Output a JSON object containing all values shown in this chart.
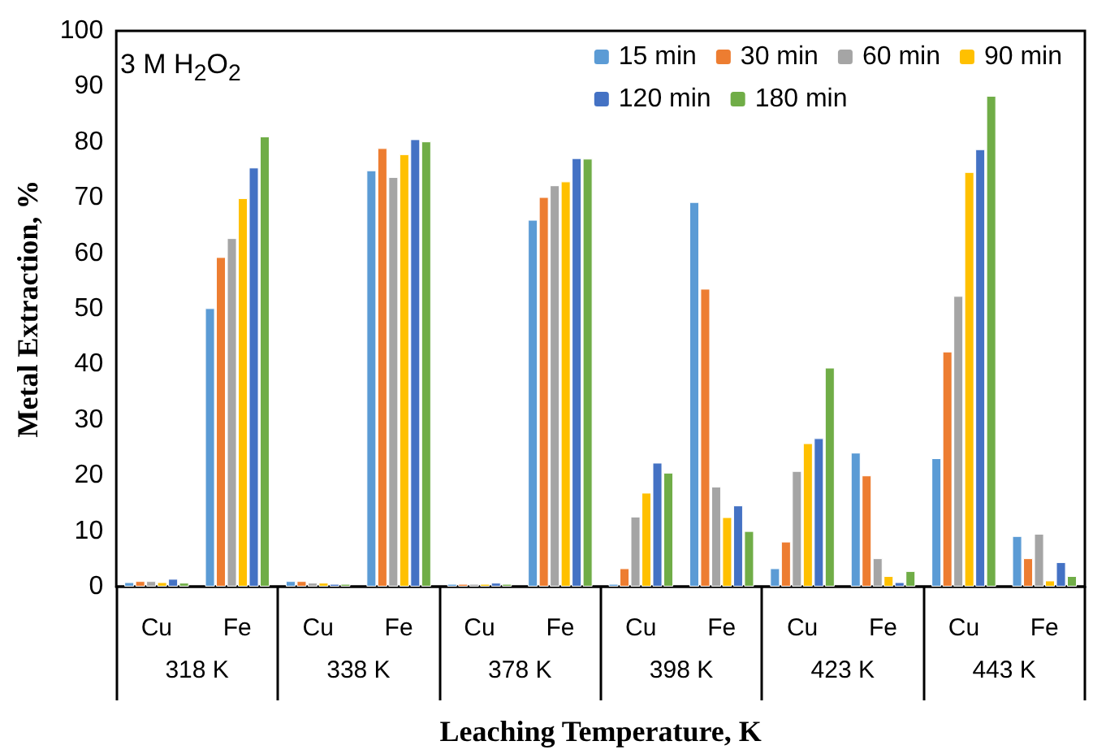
{
  "chart_data": {
    "type": "bar",
    "xlabel": "Leaching Temperature, K",
    "ylabel": "Metal Extraction, %",
    "annotations": [
      "3 M H$_{2}$O$_{2}$",
      "318 K",
      "338 K",
      "378 K",
      "398 K",
      "423 K",
      "443 K"
    ],
    "categories": [
      "Cu",
      "Fe",
      "Cu",
      "Fe",
      "Cu",
      "Fe",
      "Cu",
      "Fe",
      "Cu",
      "Fe",
      "Cu",
      "Fe"
    ],
    "series": [
      {
        "name": "15 min",
        "color": "#5b9bd5",
        "values": [
          0.8,
          50.1,
          1.0,
          74.9,
          0.5,
          66.0,
          0.5,
          69.2,
          3.3,
          24.1,
          23.1,
          9.1
        ]
      },
      {
        "name": "30 min",
        "color": "#ed7d31",
        "values": [
          1.0,
          59.3,
          1.0,
          78.9,
          0.5,
          70.1,
          3.3,
          53.6,
          8.1,
          20.0,
          42.3,
          5.1
        ]
      },
      {
        "name": "60 min",
        "color": "#a5a5a5",
        "values": [
          1.0,
          62.7,
          0.7,
          73.7,
          0.5,
          72.2,
          12.6,
          18.0,
          20.8,
          5.1,
          52.3,
          9.5
        ]
      },
      {
        "name": "90 min",
        "color": "#ffc000",
        "values": [
          0.8,
          69.9,
          0.7,
          77.8,
          0.5,
          72.9,
          16.9,
          12.5,
          25.8,
          1.9,
          74.6,
          1.1
        ]
      },
      {
        "name": "120 min",
        "color": "#4472c4",
        "values": [
          1.4,
          75.4,
          0.5,
          80.5,
          0.7,
          77.1,
          22.3,
          14.6,
          26.7,
          0.8,
          78.7,
          4.4
        ]
      },
      {
        "name": "180 min",
        "color": "#70ad47",
        "values": [
          0.7,
          81.0,
          0.5,
          80.1,
          0.5,
          77.0,
          20.5,
          10.0,
          39.4,
          2.8,
          88.3,
          1.9
        ]
      }
    ],
    "ylim": [
      0,
      100
    ],
    "yticks": [
      0,
      10,
      20,
      30,
      40,
      50,
      60,
      70,
      80,
      90,
      100
    ],
    "grid": false,
    "legend": "top right"
  }
}
